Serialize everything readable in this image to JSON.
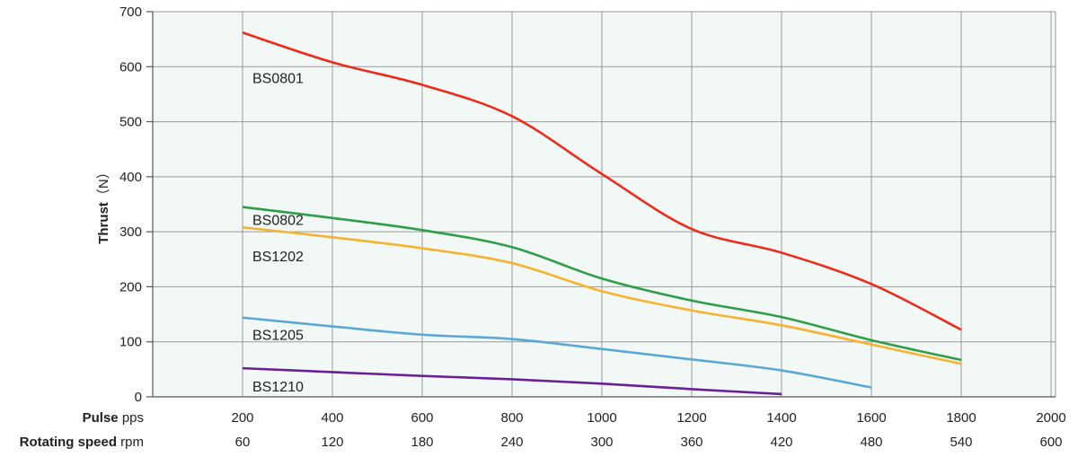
{
  "chart_data": {
    "type": "line",
    "ylabel": "Thrust",
    "ylabel_unit": "（N）",
    "ylim": [
      0,
      700
    ],
    "yticks": [
      0,
      100,
      200,
      300,
      400,
      500,
      600,
      700
    ],
    "xlim": [
      0,
      2000
    ],
    "x_primary": {
      "name": "Pulse",
      "unit": "pps",
      "ticks": [
        200,
        400,
        600,
        800,
        1000,
        1200,
        1400,
        1600,
        1800,
        2000
      ]
    },
    "x_secondary": {
      "name": "Rotating speed",
      "unit": "rpm",
      "ticks": [
        60,
        120,
        180,
        240,
        300,
        360,
        420,
        480,
        540,
        600
      ]
    },
    "grid": true,
    "background_color": "#f2f8f6",
    "grid_color": "#9a9a9a",
    "series": [
      {
        "name": "BS0801",
        "color": "#ee2b1b",
        "points": [
          [
            200,
            662
          ],
          [
            400,
            608
          ],
          [
            600,
            567
          ],
          [
            800,
            510
          ],
          [
            1000,
            405
          ],
          [
            1200,
            305
          ],
          [
            1400,
            262
          ],
          [
            1600,
            205
          ],
          [
            1800,
            122
          ]
        ]
      },
      {
        "name": "BS0802",
        "color": "#2e9e48",
        "points": [
          [
            200,
            345
          ],
          [
            400,
            325
          ],
          [
            600,
            303
          ],
          [
            800,
            272
          ],
          [
            1000,
            215
          ],
          [
            1200,
            175
          ],
          [
            1400,
            145
          ],
          [
            1600,
            103
          ],
          [
            1800,
            67
          ]
        ]
      },
      {
        "name": "BS1202",
        "color": "#f5b330",
        "points": [
          [
            200,
            308
          ],
          [
            400,
            290
          ],
          [
            600,
            270
          ],
          [
            800,
            243
          ],
          [
            1000,
            192
          ],
          [
            1200,
            157
          ],
          [
            1400,
            130
          ],
          [
            1600,
            95
          ],
          [
            1800,
            60
          ]
        ]
      },
      {
        "name": "BS1205",
        "color": "#5aa8d6",
        "points": [
          [
            200,
            144
          ],
          [
            400,
            128
          ],
          [
            600,
            113
          ],
          [
            800,
            105
          ],
          [
            1000,
            87
          ],
          [
            1200,
            68
          ],
          [
            1400,
            48
          ],
          [
            1600,
            17
          ]
        ]
      },
      {
        "name": "BS1210",
        "color": "#6a1f9a",
        "points": [
          [
            200,
            52
          ],
          [
            400,
            45
          ],
          [
            600,
            38
          ],
          [
            800,
            32
          ],
          [
            1000,
            24
          ],
          [
            1200,
            14
          ],
          [
            1400,
            5
          ]
        ]
      }
    ]
  }
}
